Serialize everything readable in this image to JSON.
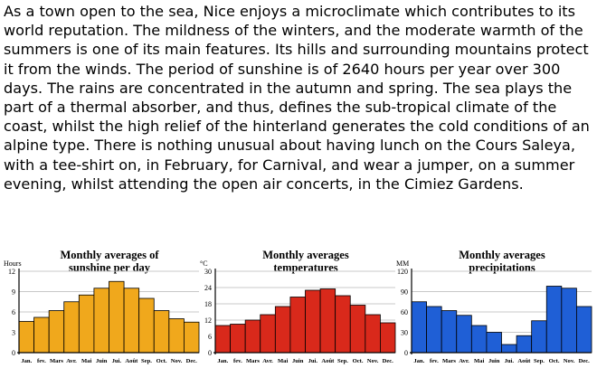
{
  "text": {
    "paragraph": "As a town open to the sea, Nice enjoys a microclimate which contributes to its world reputation. The mildness of the winters, and the moderate warmth of the summers is one of its main features. Its hills and surrounding mountains protect it from the winds. The period of sunshine is of 2640 hours per year over 300 days. The rains are concentrated in the autumn and spring. The sea plays the part of a thermal absorber, and thus, defines the sub-tropical climate of the coast, whilst the high relief of the hinterland generates the cold conditions of an alpine type. There is nothing unusual about having lunch on the Cours Saleya, with a tee-shirt on, in February, for Carnival, and wear a jumper, on a summer evening, whilst attending the open air concerts, in the Cimiez Gardens."
  },
  "chart_data": [
    {
      "type": "bar",
      "title": "Monthly averages of sunshine per day",
      "title_lines": [
        "Monthly averages of",
        "sunshine per day"
      ],
      "ylabel": "Hours",
      "ylim": [
        0,
        12
      ],
      "yticks": [
        "0",
        "3",
        "6",
        "9",
        "12"
      ],
      "categories": [
        "Jan.",
        "fev.",
        "Mars",
        "Avr.",
        "Mai",
        "Juin",
        "Jui.",
        "Août",
        "Sep.",
        "Oct.",
        "Nov.",
        "Dec."
      ],
      "values": [
        4.6,
        5.2,
        6.2,
        7.5,
        8.5,
        9.5,
        10.5,
        9.5,
        8.0,
        6.2,
        5.0,
        4.5
      ],
      "color": "#f0a81c",
      "grid": true
    },
    {
      "type": "bar",
      "title": "Monthly averages temperatures",
      "title_lines": [
        "Monthly averages",
        "temperatures"
      ],
      "ylabel": "°C",
      "ylim": [
        0,
        30
      ],
      "yticks": [
        "0",
        "6",
        "12",
        "18",
        "24",
        "30"
      ],
      "categories": [
        "Jan.",
        "fev.",
        "Mars",
        "Avr.",
        "Mai",
        "Juin",
        "Jui.",
        "Août",
        "Sep.",
        "Oct.",
        "Nov.",
        "Dec."
      ],
      "values": [
        10.0,
        10.5,
        12.0,
        14.0,
        17.0,
        20.5,
        23.0,
        23.5,
        21.0,
        17.5,
        14.0,
        11.0
      ],
      "color": "#d9291b",
      "grid": true
    },
    {
      "type": "bar",
      "title": "Monthly averages precipitations",
      "title_lines": [
        "Monthly averages",
        "precipitations"
      ],
      "ylabel": "MM",
      "ylim": [
        0,
        120
      ],
      "yticks": [
        "0",
        "30",
        "60",
        "90",
        "120"
      ],
      "categories": [
        "Jan.",
        "fev.",
        "Mars",
        "Avr.",
        "Mai",
        "Juin",
        "Jui.",
        "Août",
        "Sep.",
        "Oct.",
        "Nov.",
        "Dec."
      ],
      "values": [
        75,
        68,
        62,
        55,
        40,
        30,
        12,
        25,
        47,
        98,
        95,
        68
      ],
      "color": "#1f5fd6",
      "grid": true
    }
  ]
}
